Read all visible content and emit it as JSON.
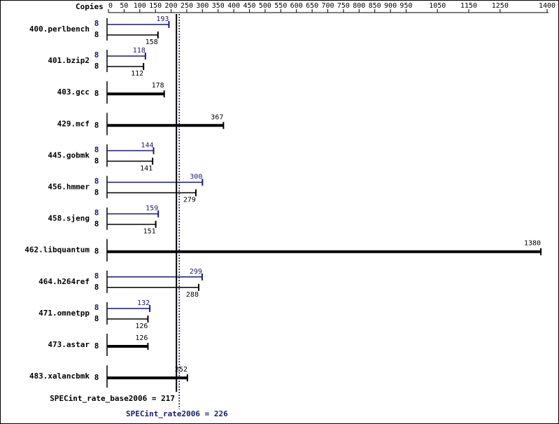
{
  "chart_data": {
    "type": "bar",
    "orientation": "horizontal",
    "copies_header": "Copies",
    "categories": [
      "400.perlbench",
      "401.bzip2",
      "403.gcc",
      "429.mcf",
      "445.gobmk",
      "456.hmmer",
      "458.sjeng",
      "462.libquantum",
      "464.h264ref",
      "471.omnetpp",
      "473.astar",
      "483.xalancbmk"
    ],
    "series": [
      {
        "color": "#000000",
        "values": [
          158,
          112,
          178,
          367,
          141,
          279,
          151,
          1380,
          288,
          126,
          126,
          252
        ],
        "copies": [
          8,
          8,
          8,
          8,
          8,
          8,
          8,
          8,
          8,
          8,
          8,
          8
        ]
      },
      {
        "color": "#191970",
        "values": [
          193,
          118,
          null,
          null,
          144,
          300,
          159,
          null,
          299,
          132,
          null,
          null
        ],
        "copies": [
          8,
          8,
          null,
          null,
          8,
          8,
          8,
          null,
          8,
          8,
          null,
          null
        ]
      }
    ],
    "xlim": [
      0,
      1400
    ],
    "xticks": [
      0,
      50,
      100,
      150,
      200,
      250,
      300,
      350,
      400,
      450,
      500,
      550,
      600,
      650,
      700,
      750,
      800,
      850,
      900,
      950,
      1050,
      1150,
      1250,
      1400
    ],
    "reference_lines": [
      {
        "value": 217,
        "label": "SPECint_rate_base2006 = 217",
        "color": "#000000",
        "style": "solid"
      },
      {
        "value": 226,
        "label": "SPECint_rate2006 = 226",
        "color": "#191970",
        "style": "dotted"
      }
    ]
  }
}
